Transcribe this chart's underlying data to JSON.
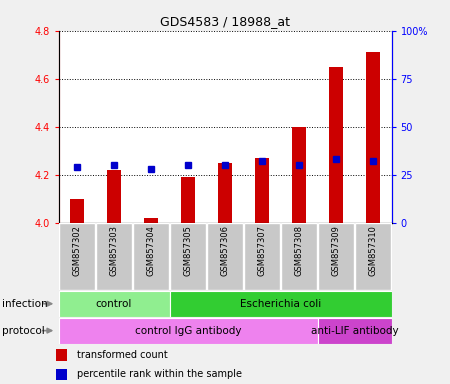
{
  "title": "GDS4583 / 18988_at",
  "samples": [
    "GSM857302",
    "GSM857303",
    "GSM857304",
    "GSM857305",
    "GSM857306",
    "GSM857307",
    "GSM857308",
    "GSM857309",
    "GSM857310"
  ],
  "transformed_count": [
    4.1,
    4.22,
    4.02,
    4.19,
    4.25,
    4.27,
    4.4,
    4.65,
    4.71
  ],
  "percentile_rank": [
    29,
    30,
    28,
    30,
    30,
    32,
    30,
    33,
    32
  ],
  "ylim_left": [
    4.0,
    4.8
  ],
  "ylim_right": [
    0,
    100
  ],
  "yticks_left": [
    4.0,
    4.2,
    4.4,
    4.6,
    4.8
  ],
  "yticks_right": [
    0,
    25,
    50,
    75,
    100
  ],
  "ytick_labels_right": [
    "0",
    "25",
    "50",
    "75",
    "100%"
  ],
  "infection_groups": [
    {
      "label": "control",
      "start": 0,
      "end": 3,
      "color": "#90EE90"
    },
    {
      "label": "Escherichia coli",
      "start": 3,
      "end": 9,
      "color": "#32CD32"
    }
  ],
  "protocol_groups": [
    {
      "label": "control IgG antibody",
      "start": 0,
      "end": 7,
      "color": "#EE82EE"
    },
    {
      "label": "anti-LIF antibody",
      "start": 7,
      "end": 9,
      "color": "#CC44CC"
    }
  ],
  "bar_color": "#CC0000",
  "dot_color": "#0000CC",
  "legend_red": "transformed count",
  "legend_blue": "percentile rank within the sample",
  "background_color": "#f0f0f0",
  "plot_bg_color": "#ffffff",
  "bar_width": 0.4,
  "sample_box_color": "#c8c8c8",
  "arrow_color": "#888888"
}
